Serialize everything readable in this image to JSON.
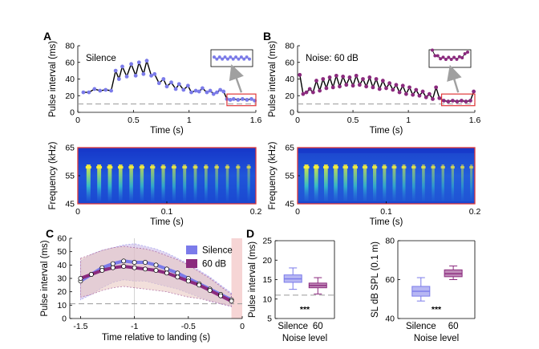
{
  "figure": {
    "panel_letters": [
      "A",
      "B",
      "C",
      "D"
    ],
    "colors": {
      "silence": "#7b7bea",
      "noise": "#8b2a7e",
      "black_line": "#000000",
      "dashed_ref": "#9a9a9a",
      "highlight_box": "#e0383a",
      "zoom_arrow": "#a0a0a0",
      "c_silence_band": "#c9b7e6",
      "c_noise_band": "#e8c4bd",
      "c_landing_zone": "#f6d5d5"
    }
  },
  "chart_data": [
    {
      "id": "A-top",
      "type": "line",
      "annotation": "Silence",
      "xlabel": "Time (s)",
      "ylabel": "Pulse interval (ms)",
      "xlim": [
        0,
        1.6
      ],
      "ylim": [
        0,
        80
      ],
      "xticks": [
        0,
        0.5,
        1,
        1.6
      ],
      "xtick_labels": [
        "0",
        "0.5",
        "1",
        "1.6"
      ],
      "yticks": [
        0,
        20,
        40,
        60,
        80
      ],
      "ytick_labels": [
        "0",
        "20",
        "40",
        "60",
        "80"
      ],
      "reference_line_y": 10,
      "zoom_window": [
        1.34,
        1.6
      ],
      "series": [
        {
          "x": [
            0.05,
            0.1,
            0.15,
            0.2,
            0.25,
            0.3,
            0.34,
            0.37,
            0.4,
            0.44,
            0.48,
            0.52,
            0.55,
            0.59,
            0.62,
            0.66,
            0.69,
            0.73,
            0.77,
            0.8,
            0.84,
            0.88,
            0.91,
            0.95,
            0.99,
            1.02,
            1.06,
            1.09,
            1.12,
            1.16,
            1.19,
            1.22,
            1.25,
            1.28,
            1.31,
            1.34,
            1.37,
            1.4,
            1.44,
            1.48,
            1.52,
            1.56,
            1.59
          ],
          "y": [
            24,
            24,
            28,
            26,
            27,
            26,
            50,
            40,
            55,
            43,
            58,
            44,
            60,
            46,
            62,
            44,
            46,
            35,
            40,
            31,
            36,
            28,
            34,
            27,
            32,
            24,
            26,
            25,
            29,
            24,
            26,
            22,
            24,
            27,
            25,
            16,
            15,
            16,
            15,
            16,
            15,
            16,
            14
          ]
        }
      ]
    },
    {
      "id": "B-top",
      "type": "line",
      "annotation": "Noise: 60 dB",
      "xlabel": "Time (s)",
      "ylabel": "Pulse interval (ms)",
      "xlim": [
        0,
        1.6
      ],
      "ylim": [
        0,
        80
      ],
      "xticks": [
        0,
        0.5,
        1,
        1.6
      ],
      "xtick_labels": [
        "0",
        "0.5",
        "1",
        "1.6"
      ],
      "yticks": [
        0,
        20,
        40,
        60,
        80
      ],
      "ytick_labels": [
        "0",
        "20",
        "40",
        "60",
        "80"
      ],
      "reference_line_y": 10,
      "zoom_window": [
        1.3,
        1.6
      ],
      "series": [
        {
          "x": [
            0.02,
            0.05,
            0.08,
            0.11,
            0.14,
            0.17,
            0.2,
            0.23,
            0.26,
            0.29,
            0.32,
            0.35,
            0.38,
            0.41,
            0.44,
            0.47,
            0.5,
            0.53,
            0.56,
            0.59,
            0.62,
            0.65,
            0.68,
            0.71,
            0.74,
            0.77,
            0.8,
            0.83,
            0.86,
            0.89,
            0.92,
            0.95,
            0.98,
            1.01,
            1.04,
            1.07,
            1.1,
            1.13,
            1.16,
            1.19,
            1.22,
            1.25,
            1.28,
            1.32,
            1.36,
            1.4,
            1.44,
            1.48,
            1.52,
            1.56,
            1.59
          ],
          "y": [
            45,
            22,
            24,
            28,
            24,
            38,
            26,
            40,
            29,
            42,
            30,
            44,
            31,
            43,
            33,
            42,
            32,
            44,
            33,
            40,
            31,
            42,
            30,
            40,
            28,
            38,
            29,
            35,
            27,
            33,
            24,
            32,
            22,
            30,
            21,
            27,
            20,
            25,
            18,
            22,
            16,
            30,
            17,
            14,
            13,
            14,
            13,
            14,
            13,
            14,
            25
          ]
        }
      ]
    },
    {
      "id": "A-bottom",
      "type": "heatmap",
      "xlabel": "Time (s)",
      "ylabel": "Frequency (kHz)",
      "xlim": [
        0,
        0.2
      ],
      "ylim": [
        45,
        65
      ],
      "xticks": [
        0,
        0.1,
        0.2
      ],
      "xtick_labels": [
        "0",
        "0.1",
        "0.2"
      ],
      "yticks": [
        45,
        55,
        65
      ],
      "ytick_labels": [
        "45",
        "55",
        "65"
      ],
      "pulse_times": [
        0.012,
        0.024,
        0.036,
        0.048,
        0.06,
        0.072,
        0.084,
        0.096,
        0.108,
        0.12,
        0.132,
        0.144,
        0.156,
        0.168,
        0.18,
        0.192
      ],
      "pulse_start_khz": 58,
      "pulse_end_khz": 50
    },
    {
      "id": "B-bottom",
      "type": "heatmap",
      "xlabel": "Time (s)",
      "ylabel": "Frequency (kHz)",
      "xlim": [
        0,
        0.2
      ],
      "ylim": [
        45,
        65
      ],
      "xticks": [
        0,
        0.1,
        0.2
      ],
      "xtick_labels": [
        "0",
        "0.1",
        "0.2"
      ],
      "yticks": [
        45,
        55,
        65
      ],
      "ytick_labels": [
        "45",
        "55",
        "65"
      ],
      "pulse_times": [
        0.01,
        0.021,
        0.032,
        0.043,
        0.054,
        0.065,
        0.076,
        0.087,
        0.098,
        0.109,
        0.12,
        0.131,
        0.142,
        0.153,
        0.164,
        0.175,
        0.186,
        0.196
      ],
      "pulse_start_khz": 58,
      "pulse_end_khz": 50
    },
    {
      "id": "C",
      "type": "line",
      "xlabel": "Time relative to landing (s)",
      "ylabel": "Pulse interval (ms)",
      "xlim": [
        -1.6,
        0
      ],
      "ylim": [
        0,
        60
      ],
      "xticks": [
        -1.5,
        -1,
        -0.5,
        0
      ],
      "xtick_labels": [
        "-1.5",
        "-1",
        "-0.5",
        "0"
      ],
      "yticks": [
        0,
        10,
        20,
        30,
        40,
        50,
        60
      ],
      "ytick_labels": [
        "0",
        "10",
        "20",
        "30",
        "40",
        "50",
        "60"
      ],
      "reference_line_y": 11,
      "landing_zone": [
        -0.1,
        0
      ],
      "legend_position": "top-right",
      "series": [
        {
          "name": "Silence",
          "x": [
            -1.5,
            -1.4,
            -1.3,
            -1.2,
            -1.1,
            -1.0,
            -0.9,
            -0.8,
            -0.7,
            -0.6,
            -0.5,
            -0.4,
            -0.3,
            -0.2,
            -0.1
          ],
          "y": [
            28,
            33,
            38,
            41,
            43,
            42,
            42,
            40,
            37,
            34,
            30,
            26,
            22,
            18,
            14
          ],
          "band_upper": [
            43,
            48,
            51,
            53,
            55,
            56,
            54,
            52,
            49,
            45,
            41,
            36,
            31,
            25,
            19
          ],
          "band_lower": [
            14,
            18,
            23,
            27,
            29,
            28,
            28,
            26,
            24,
            22,
            19,
            16,
            13,
            11,
            9
          ]
        },
        {
          "name": "60 dB",
          "x": [
            -1.5,
            -1.4,
            -1.3,
            -1.2,
            -1.1,
            -1.0,
            -0.9,
            -0.8,
            -0.7,
            -0.6,
            -0.5,
            -0.4,
            -0.3,
            -0.2,
            -0.1
          ],
          "y": [
            30,
            33,
            36,
            38,
            39,
            38,
            37,
            36,
            34,
            31,
            28,
            25,
            21,
            17,
            13
          ],
          "band_upper": [
            45,
            48,
            51,
            53,
            54,
            53,
            52,
            50,
            47,
            44,
            40,
            35,
            30,
            24,
            18
          ],
          "band_lower": [
            16,
            18,
            21,
            23,
            24,
            23,
            22,
            21,
            20,
            18,
            16,
            15,
            13,
            11,
            9
          ]
        }
      ]
    },
    {
      "id": "D-left",
      "type": "box",
      "xlabel": "Noise level",
      "ylabel": "Pulse interval (ms)",
      "ylim": [
        5,
        25
      ],
      "yticks": [
        5,
        10,
        15,
        20,
        25
      ],
      "ytick_labels": [
        "5",
        "10",
        "15",
        "20",
        "25"
      ],
      "reference_line_y": 11,
      "significance": "***",
      "categories": [
        "Silence",
        "60"
      ],
      "boxes": [
        {
          "whisker_low": 12.5,
          "q1": 14.3,
          "median": 15.2,
          "q3": 16.2,
          "whisker_high": 18.0
        },
        {
          "whisker_low": 11.3,
          "q1": 12.9,
          "median": 13.5,
          "q3": 14.1,
          "whisker_high": 15.5
        }
      ]
    },
    {
      "id": "D-right",
      "type": "box",
      "xlabel": "Noise level",
      "ylabel": "SL dB SPL (0.1 m)",
      "ylim": [
        40,
        80
      ],
      "yticks": [
        40,
        60,
        80
      ],
      "ytick_labels": [
        "40",
        "60",
        "80"
      ],
      "significance": "***",
      "categories": [
        "Silence",
        "60"
      ],
      "boxes": [
        {
          "whisker_low": 49,
          "q1": 51.5,
          "median": 54,
          "q3": 56.5,
          "whisker_high": 61
        },
        {
          "whisker_low": 60,
          "q1": 61.5,
          "median": 63,
          "q3": 65,
          "whisker_high": 67
        }
      ]
    }
  ]
}
